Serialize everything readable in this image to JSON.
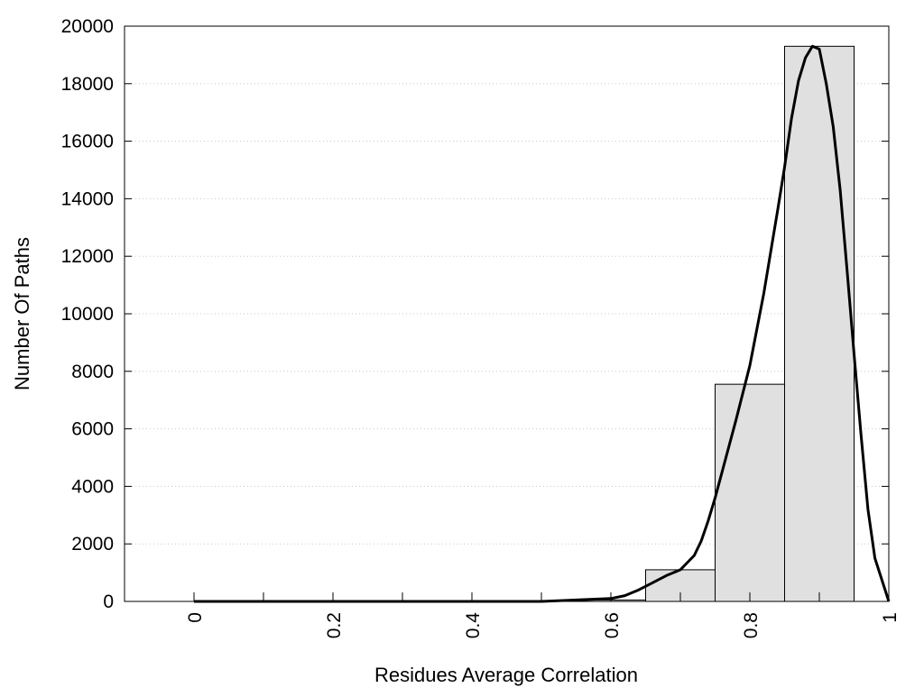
{
  "chart_data": {
    "type": "bar",
    "subtype": "histogram-with-fitted-curve",
    "xlabel": "Residues Average Correlation",
    "ylabel": "Number Of Paths",
    "xlim": [
      -0.1,
      1.0
    ],
    "ylim": [
      0,
      20000
    ],
    "x_ticks": [
      0,
      0.2,
      0.4,
      0.6,
      0.8,
      1
    ],
    "x_tick_labels": [
      "0",
      "0.2",
      "0.4",
      "0.6",
      "0.8",
      "1"
    ],
    "x_minor_ticks": [
      0.1,
      0.3,
      0.5,
      0.7,
      0.9
    ],
    "y_ticks": [
      0,
      2000,
      4000,
      6000,
      8000,
      10000,
      12000,
      14000,
      16000,
      18000,
      20000
    ],
    "y_tick_labels": [
      "0",
      "2000",
      "4000",
      "6000",
      "8000",
      "10000",
      "12000",
      "14000",
      "16000",
      "18000",
      "20000"
    ],
    "grid": "horizontal-dotted",
    "bar_fill": "#e0e0e0",
    "bar_stroke": "#000000",
    "curve_color": "#000000",
    "bins": [
      {
        "x0": 0.55,
        "x1": 0.65,
        "value": 50
      },
      {
        "x0": 0.65,
        "x1": 0.75,
        "value": 1100
      },
      {
        "x0": 0.75,
        "x1": 0.85,
        "value": 7550
      },
      {
        "x0": 0.85,
        "x1": 0.95,
        "value": 19300
      }
    ],
    "curve": {
      "x": [
        0.0,
        0.5,
        0.55,
        0.6,
        0.62,
        0.64,
        0.66,
        0.68,
        0.7,
        0.72,
        0.73,
        0.74,
        0.75,
        0.76,
        0.78,
        0.8,
        0.82,
        0.84,
        0.85,
        0.86,
        0.87,
        0.88,
        0.89,
        0.9,
        0.91,
        0.92,
        0.93,
        0.94,
        0.95,
        0.96,
        0.97,
        0.98,
        1.0
      ],
      "y": [
        0,
        0,
        50,
        100,
        200,
        400,
        650,
        900,
        1100,
        1600,
        2100,
        2800,
        3600,
        4500,
        6300,
        8200,
        10700,
        13600,
        15100,
        16800,
        18100,
        18900,
        19300,
        19200,
        18000,
        16500,
        14300,
        11500,
        8600,
        5800,
        3200,
        1500,
        0
      ]
    }
  }
}
